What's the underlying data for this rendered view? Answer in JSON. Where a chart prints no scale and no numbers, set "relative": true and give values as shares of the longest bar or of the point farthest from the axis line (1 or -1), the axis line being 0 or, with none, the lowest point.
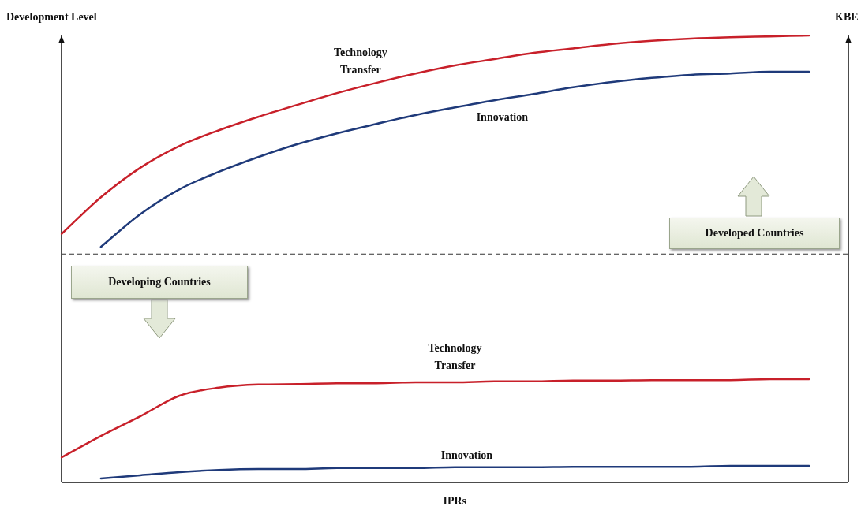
{
  "chart_data": {
    "type": "line",
    "relative": true,
    "xlabel": "IPRs",
    "ylabel": "Development Level",
    "categories": [
      null,
      null,
      null,
      null,
      null,
      null,
      null,
      null,
      null,
      null,
      null,
      null,
      null,
      null,
      null,
      null,
      null,
      null,
      null,
      null,
      null
    ],
    "series": [
      {
        "name": "Technology Transfer",
        "color": "#c8202a",
        "values": [
          0.556,
          0.638,
          0.704,
          0.753,
          0.788,
          0.818,
          0.845,
          0.871,
          0.894,
          0.915,
          0.933,
          0.947,
          0.961,
          0.971,
          0.981,
          0.988,
          0.993,
          0.996,
          0.998,
          1,
          null
        ]
      },
      {
        "name": "Innovation",
        "color": "#1f3a7a",
        "values": [
          null,
          0.527,
          0.6,
          0.656,
          0.695,
          0.728,
          0.757,
          0.781,
          0.802,
          0.822,
          0.839,
          0.855,
          0.869,
          0.884,
          0.896,
          0.905,
          0.912,
          0.915,
          0.919,
          0.919,
          null
        ]
      },
      {
        "name": "Technology Transfer",
        "color": "#c8202a",
        "values": [
          0.056,
          0.104,
          0.148,
          0.194,
          0.212,
          0.219,
          0.22,
          0.222,
          0.222,
          0.224,
          0.224,
          0.226,
          0.226,
          0.228,
          0.228,
          0.229,
          0.229,
          0.229,
          0.231,
          0.231,
          null
        ]
      },
      {
        "name": "Innovation",
        "color": "#1f3a7a",
        "values": [
          null,
          0.009,
          0.016,
          0.023,
          0.028,
          0.03,
          0.03,
          0.032,
          0.032,
          0.032,
          0.034,
          0.034,
          0.034,
          0.035,
          0.035,
          0.035,
          0.035,
          0.037,
          0.037,
          0.037,
          null
        ]
      }
    ],
    "ref_lines": [
      {
        "axis": "y",
        "value": 0.511,
        "line_style": "dashed",
        "color": "#333333"
      }
    ],
    "annotations": [
      "KBE",
      "Developing Countries",
      "Developed Countries"
    ],
    "legend": false,
    "tick_labels": false,
    "marker": "none",
    "line_style": "solid"
  }
}
